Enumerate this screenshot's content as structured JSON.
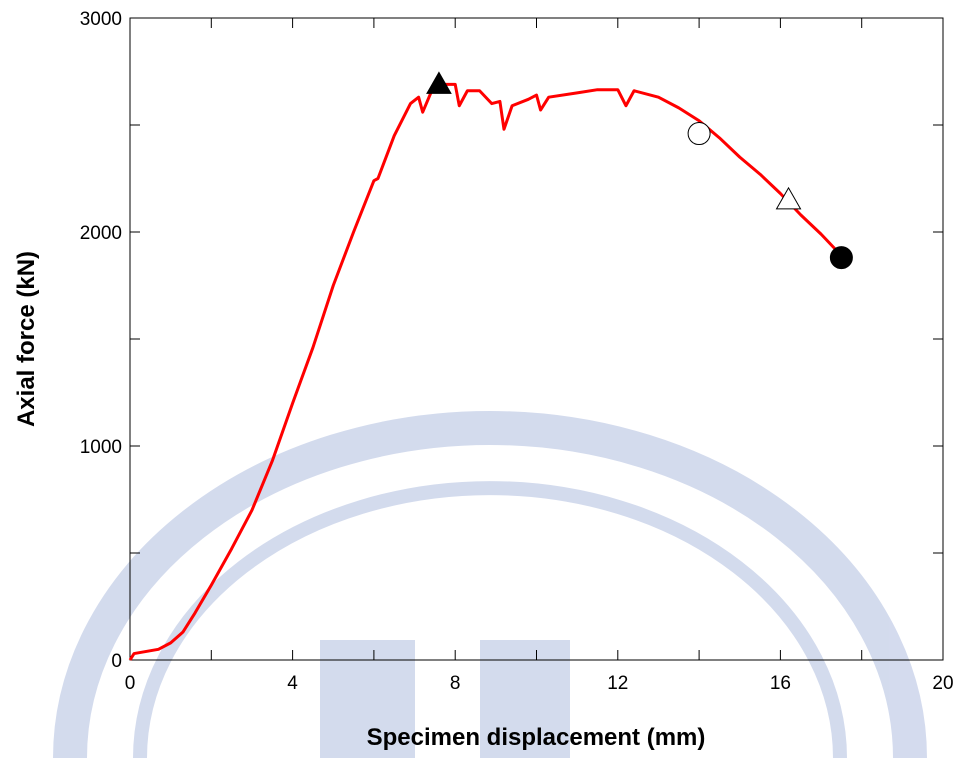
{
  "chart_data": {
    "type": "line",
    "x_label": "Specimen displacement (mm)",
    "y_label": "Axial force (kN)",
    "x": [
      0,
      0.1,
      0.7,
      1,
      1.3,
      1.6,
      2,
      2.5,
      3,
      3.5,
      4,
      4.5,
      5,
      5.5,
      6,
      6.1,
      6.5,
      6.9,
      7.1,
      7.2,
      7.4,
      7.6,
      8,
      8.1,
      8.3,
      8.6,
      8.9,
      9.1,
      9.2,
      9.4,
      9.8,
      10,
      10.1,
      10.3,
      11,
      11.5,
      12,
      12.2,
      12.4,
      13,
      13.5,
      14,
      14.5,
      15,
      15.5,
      16,
      16.5,
      17,
      17.3,
      17.5
    ],
    "series": [
      {
        "color": "#ff0000",
        "values": [
          0,
          30,
          50,
          80,
          130,
          220,
          350,
          520,
          700,
          930,
          1200,
          1460,
          1750,
          2000,
          2240,
          2250,
          2450,
          2600,
          2630,
          2560,
          2650,
          2690,
          2690,
          2590,
          2660,
          2660,
          2600,
          2610,
          2480,
          2590,
          2620,
          2640,
          2570,
          2630,
          2650,
          2665,
          2665,
          2590,
          2660,
          2630,
          2580,
          2520,
          2440,
          2350,
          2270,
          2180,
          2080,
          1990,
          1930,
          1890
        ]
      }
    ],
    "markers": [
      {
        "x": 7.6,
        "y": 2690,
        "shape": "triangle",
        "fill": "#000000"
      },
      {
        "x": 14.0,
        "y": 2460,
        "shape": "circle",
        "fill": "#ffffff"
      },
      {
        "x": 16.2,
        "y": 2150,
        "shape": "triangle",
        "fill": "#ffffff"
      },
      {
        "x": 17.5,
        "y": 1880,
        "shape": "circle",
        "fill": "#000000"
      }
    ],
    "xlim": [
      0,
      20
    ],
    "ylim": [
      0,
      3000
    ],
    "xticks": [
      0,
      4,
      8,
      12,
      16,
      20
    ],
    "yticks": [
      0,
      1000,
      2000,
      3000
    ],
    "xminorticks": [
      2,
      6,
      10,
      14,
      18
    ],
    "yminorticks": [
      500,
      1500,
      2500
    ]
  }
}
